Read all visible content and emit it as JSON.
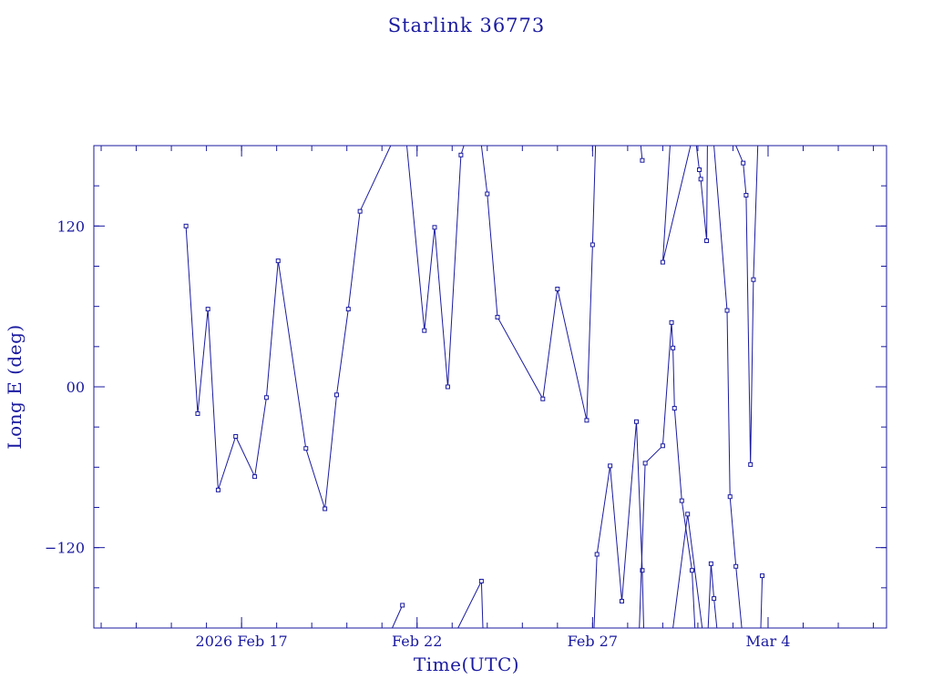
{
  "chart_data": {
    "type": "scatter",
    "title": "Starlink 36773",
    "xlabel": "Time(UTC)",
    "ylabel": "Long E (deg)",
    "x_unit": "day",
    "x_tick_labels": [
      "2026 Feb 17",
      "Feb 22",
      "Feb 27",
      "Mar  4"
    ],
    "x_tick_dates": [
      "2026-02-17",
      "2026-02-22",
      "2026-02-27",
      "2026-03-04"
    ],
    "xlim": [
      "2026-02-12T19:00",
      "2026-03-07T09:00"
    ],
    "y_tick_labels": [
      "−120",
      "00",
      "120"
    ],
    "y_ticks": [
      -120,
      0,
      120
    ],
    "ylim": [
      -180,
      180
    ],
    "grid": false,
    "color": "#1a1aa0",
    "series": [
      {
        "points": [
          [
            "2026-02-15T10:00",
            120
          ],
          [
            "2026-02-15T18:00",
            -20
          ],
          [
            "2026-02-16T01:00",
            58
          ],
          [
            "2026-02-16T08:00",
            -77
          ],
          [
            "2026-02-16T20:00",
            -37
          ],
          [
            "2026-02-17T09:00",
            -67
          ],
          [
            "2026-02-17T17:00",
            -8
          ],
          [
            "2026-02-18T01:00",
            94
          ],
          [
            "2026-02-18T20:00",
            -46
          ],
          [
            "2026-02-19T09:00",
            -91
          ],
          [
            "2026-02-19T17:00",
            -6
          ],
          [
            "2026-02-20T01:00",
            58
          ],
          [
            "2026-02-20T09:00",
            131
          ],
          [
            "2026-02-21T06:00",
            180
          ]
        ]
      },
      {
        "points": [
          [
            "2026-02-21T07:00",
            -180
          ],
          [
            "2026-02-21T14:00",
            -163
          ]
        ]
      },
      {
        "points": [
          [
            "2026-02-21T17:00",
            180
          ],
          [
            "2026-02-22T05:00",
            42
          ],
          [
            "2026-02-22T12:00",
            119
          ],
          [
            "2026-02-22T21:00",
            0
          ],
          [
            "2026-02-23T06:00",
            173
          ],
          [
            "2026-02-23T08:00",
            180
          ]
        ]
      },
      {
        "points": [
          [
            "2026-02-23T04:00",
            -180
          ],
          [
            "2026-02-23T20:00",
            -145
          ],
          [
            "2026-02-23T21:00",
            -180
          ]
        ]
      },
      {
        "points": [
          [
            "2026-02-23T20:00",
            180
          ],
          [
            "2026-02-24T00:00",
            144
          ],
          [
            "2026-02-24T07:00",
            52
          ],
          [
            "2026-02-25T14:00",
            -9
          ],
          [
            "2026-02-26T00:00",
            73
          ],
          [
            "2026-02-26T20:00",
            -25
          ],
          [
            "2026-02-27T00:00",
            106
          ],
          [
            "2026-02-27T02:00",
            180
          ]
        ]
      },
      {
        "points": [
          [
            "2026-02-27T01:00",
            -180
          ],
          [
            "2026-02-27T03:00",
            -125
          ],
          [
            "2026-02-27T12:00",
            -59
          ],
          [
            "2026-02-27T20:00",
            -160
          ],
          [
            "2026-02-28T06:00",
            -26
          ],
          [
            "2026-02-28T10:00",
            -137
          ],
          [
            "2026-02-28T11:00",
            -180
          ]
        ]
      },
      {
        "points": [
          [
            "2026-02-28T08:00",
            -180
          ],
          [
            "2026-02-28T12:00",
            -57
          ],
          [
            "2026-02-29T00:00",
            -44
          ],
          [
            "2026-02-29T06:00",
            48
          ],
          [
            "2026-02-29T07:00",
            29
          ],
          [
            "2026-02-29T08:00",
            -16
          ],
          [
            "2026-02-29T13:00",
            -85
          ],
          [
            "2026-02-29T20:00",
            -137
          ],
          [
            "2026-02-29T22:00",
            -180
          ]
        ]
      },
      {
        "points": [
          [
            "2026-02-28T09:00",
            180
          ],
          [
            "2026-02-28T10:00",
            169
          ]
        ]
      },
      {
        "points": [
          [
            "2026-02-29T19:00",
            180
          ],
          [
            "2026-03-01T00:00",
            93
          ],
          [
            "2026-03-01T05:00",
            180
          ]
        ]
      },
      {
        "points": [
          [
            "2026-03-01T07:00",
            -180
          ],
          [
            "2026-03-01T17:00",
            -95
          ],
          [
            "2026-03-02T03:00",
            -180
          ]
        ]
      },
      {
        "points": [
          [
            "2026-03-01T23:00",
            180
          ],
          [
            "2026-03-02T01:00",
            162
          ],
          [
            "2026-03-02T02:00",
            155
          ],
          [
            "2026-03-02T06:00",
            109
          ],
          [
            "2026-03-02T06:30",
            180
          ]
        ]
      },
      {
        "points": [
          [
            "2026-03-02T07:00",
            -180
          ],
          [
            "2026-03-02T09:00",
            -132
          ],
          [
            "2026-03-02T11:00",
            -158
          ],
          [
            "2026-03-02T13:00",
            -180
          ]
        ]
      },
      {
        "points": [
          [
            "2026-03-02T11:00",
            180
          ],
          [
            "2026-03-02T20:00",
            57
          ],
          [
            "2026-03-02T22:00",
            -82
          ],
          [
            "2026-03-03T02:00",
            -134
          ],
          [
            "2026-03-03T06:00",
            -180
          ]
        ]
      },
      {
        "points": [
          [
            "2026-03-03T02:00",
            180
          ],
          [
            "2026-03-03T07:00",
            167
          ],
          [
            "2026-03-03T09:00",
            143
          ],
          [
            "2026-03-03T12:00",
            -58
          ],
          [
            "2026-03-03T14:00",
            80
          ],
          [
            "2026-03-03T17:00",
            180
          ]
        ]
      },
      {
        "points": [
          [
            "2026-03-03T19:00",
            -180
          ],
          [
            "2026-03-03T20:00",
            -141
          ]
        ]
      }
    ]
  }
}
